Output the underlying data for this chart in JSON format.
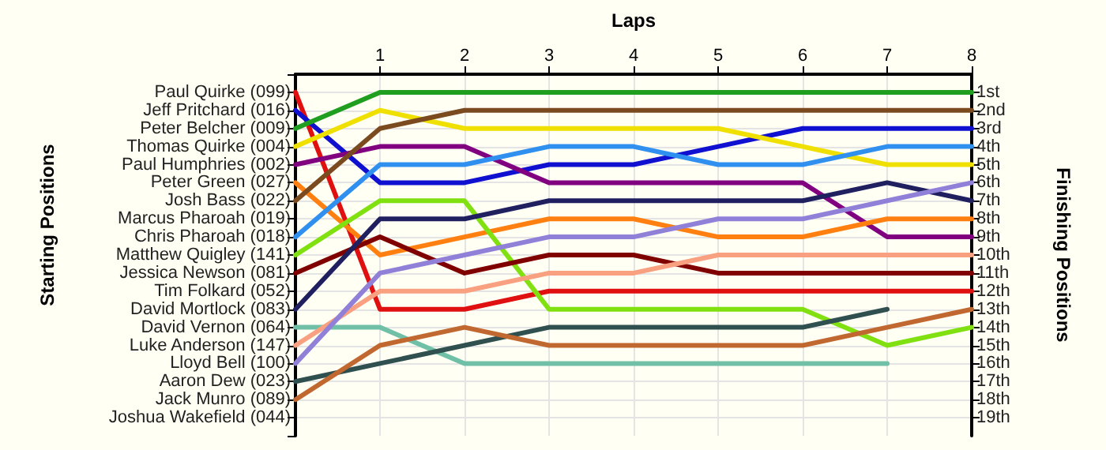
{
  "chart_data": {
    "type": "line",
    "xlabel": "Laps",
    "annotations": [
      "Starting Positions"
    ],
    "y2label": "Finishing Positions",
    "xlim": [
      0,
      8
    ],
    "xticks": [
      1,
      2,
      3,
      4,
      5,
      6,
      7,
      8
    ],
    "y_categories": [
      "Paul Quirke (099)",
      "Jeff Pritchard (016)",
      "Peter Belcher (009)",
      "Thomas Quirke (004)",
      "Paul Humphries (002)",
      "Peter Green (027)",
      "Josh Bass (022)",
      "Marcus Pharoah (019)",
      "Chris Pharoah (018)",
      "Matthew Quigley (141)",
      "Jessica Newson (081)",
      "Tim Folkard (052)",
      "David Mortlock (083)",
      "David Vernon (064)",
      "Luke Anderson (147)",
      "Lloyd Bell (100)",
      "Aaron Dew (023)",
      "Jack Munro (089)",
      "Joshua Wakefield (044)"
    ],
    "y2lim": [
      20,
      0
    ],
    "y2ticks": [
      {
        "value": 1,
        "label": "1st"
      },
      {
        "value": 2,
        "label": "2nd"
      },
      {
        "value": 3,
        "label": "3rd"
      },
      {
        "value": 4,
        "label": "4th"
      },
      {
        "value": 5,
        "label": "5th"
      },
      {
        "value": 6,
        "label": "6th"
      },
      {
        "value": 7,
        "label": "7th"
      },
      {
        "value": 8,
        "label": "8th"
      },
      {
        "value": 9,
        "label": "9th"
      },
      {
        "value": 10,
        "label": "10th"
      },
      {
        "value": 11,
        "label": "11th"
      },
      {
        "value": 12,
        "label": "12th"
      },
      {
        "value": 13,
        "label": "13th"
      },
      {
        "value": 14,
        "label": "14th"
      },
      {
        "value": 15,
        "label": "15th"
      },
      {
        "value": 16,
        "label": "16th"
      },
      {
        "value": 17,
        "label": "17th"
      },
      {
        "value": 18,
        "label": "18th"
      },
      {
        "value": 19,
        "label": "19th"
      }
    ],
    "x": [
      0,
      1,
      2,
      3,
      4,
      5,
      6,
      7,
      8
    ],
    "series": [
      {
        "color": "#e01010",
        "axis": "y2",
        "values": [
          1,
          13,
          13,
          12,
          12,
          12,
          12,
          12,
          12
        ]
      },
      {
        "color": "#1010d0",
        "axis": "y2",
        "values": [
          2,
          6,
          6,
          5,
          5,
          4,
          3,
          3,
          3
        ]
      },
      {
        "color": "#1f9e1f",
        "axis": "y2",
        "values": [
          3,
          1,
          1,
          1,
          1,
          1,
          1,
          1,
          1
        ]
      },
      {
        "color": "#f0e000",
        "axis": "y2",
        "values": [
          4,
          2,
          3,
          3,
          3,
          3,
          4,
          5,
          5
        ]
      },
      {
        "color": "#800080",
        "axis": "y2",
        "values": [
          5,
          4,
          4,
          6,
          6,
          6,
          6,
          9,
          9
        ]
      },
      {
        "color": "#ff8010",
        "axis": "y2",
        "values": [
          6,
          10,
          9,
          8,
          8,
          9,
          9,
          8,
          8
        ]
      },
      {
        "color": "#7b4a1e",
        "axis": "y2",
        "values": [
          7,
          3,
          2,
          2,
          2,
          2,
          2,
          2,
          2
        ]
      },
      {
        "color": "#3090f0",
        "axis": "y2",
        "values": [
          9,
          5,
          5,
          4,
          4,
          5,
          5,
          4,
          4
        ]
      },
      {
        "color": "#80e010",
        "axis": "y2",
        "values": [
          10,
          7,
          7,
          13,
          13,
          13,
          13,
          15,
          14
        ]
      },
      {
        "color": "#800000",
        "axis": "y2",
        "values": [
          11,
          9,
          11,
          10,
          10,
          11,
          11,
          11,
          11
        ]
      },
      {
        "color": "#202060",
        "axis": "y2",
        "values": [
          13,
          8,
          8,
          7,
          7,
          7,
          7,
          6,
          7
        ]
      },
      {
        "color": "#70c0a8",
        "axis": "y2",
        "values": [
          14,
          14,
          16,
          16,
          16,
          16,
          16,
          16,
          null
        ]
      },
      {
        "color": "#f8a080",
        "axis": "y2",
        "values": [
          15,
          12,
          12,
          11,
          11,
          10,
          10,
          10,
          10
        ]
      },
      {
        "color": "#9080d8",
        "axis": "y2",
        "values": [
          16,
          11,
          10,
          9,
          9,
          8,
          8,
          7,
          6
        ]
      },
      {
        "color": "#305050",
        "axis": "y2",
        "values": [
          17,
          16,
          15,
          14,
          14,
          14,
          14,
          13,
          null
        ]
      },
      {
        "color": "#c06830",
        "axis": "y2",
        "values": [
          18,
          15,
          14,
          15,
          15,
          15,
          15,
          14,
          13
        ]
      }
    ],
    "grid": true,
    "marker": "none",
    "line_style": "solid"
  }
}
